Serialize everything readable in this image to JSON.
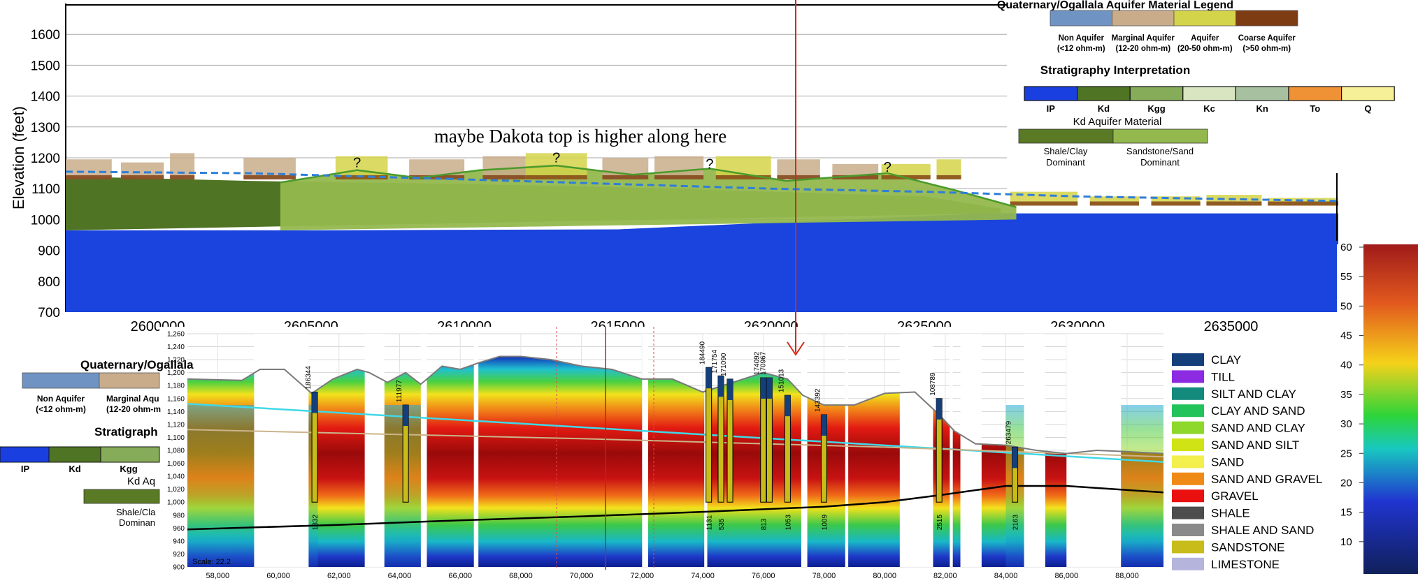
{
  "chart_data": [
    {
      "type": "area",
      "ylabel": "Elevation (feet)",
      "ylim": [
        700,
        1700
      ],
      "yticks": [
        700,
        800,
        900,
        1000,
        1100,
        1200,
        1300,
        1400,
        1500,
        1600
      ],
      "xlim": [
        2597000,
        2638500
      ],
      "xticks": [
        2600000,
        2605000,
        2610000,
        2615000,
        2620000,
        2625000,
        2630000,
        2635000
      ],
      "grid": true,
      "annotation": "maybe Dakota top is higher along here",
      "question_marks": [
        {
          "x": 2606500,
          "y": 1170,
          "text": "?"
        },
        {
          "x": 2613000,
          "y": 1185,
          "text": "?"
        },
        {
          "x": 2618000,
          "y": 1165,
          "text": "?"
        },
        {
          "x": 2623800,
          "y": 1155,
          "text": "?"
        }
      ],
      "dakota_top_dashed": {
        "x": [
          2597000,
          2603000,
          2610000,
          2615000,
          2620000,
          2625000,
          2630000,
          2638500
        ],
        "y": [
          1155,
          1150,
          1130,
          1115,
          1100,
          1090,
          1075,
          1060
        ]
      },
      "green_outline": {
        "x": [
          2604000,
          2606500,
          2608500,
          2610500,
          2613000,
          2615500,
          2618000,
          2620500,
          2623800,
          2626000,
          2628000
        ],
        "y": [
          1120,
          1160,
          1135,
          1160,
          1175,
          1145,
          1165,
          1125,
          1150,
          1095,
          1040
        ]
      },
      "bedrock_top": {
        "x": [
          2597000,
          2605000,
          2615000,
          2627000,
          2638500
        ],
        "y": [
          965,
          965,
          968,
          1020,
          1020
        ]
      },
      "legend_aquifer": {
        "title": "Quaternary/Ogallala Aquifer Material Legend",
        "items": [
          {
            "label": "Non Aquifer",
            "range": "(<12 ohm-m)",
            "color": "#6f93c3"
          },
          {
            "label": "Marginal Aquifer",
            "range": "(12-20 ohm-m)",
            "color": "#c9ad8b"
          },
          {
            "label": "Aquifer",
            "range": "(20-50 ohm-m)",
            "color": "#d4d44a"
          },
          {
            "label": "Coarse Aquifer",
            "range": "(>50 ohm-m)",
            "color": "#7e3c12"
          }
        ]
      },
      "legend_strat": {
        "title": "Stratigraphy Interpretation",
        "items": [
          {
            "label": "IP",
            "color": "#1a3fe0"
          },
          {
            "label": "Kd",
            "color": "#4f7424"
          },
          {
            "label": "Kgg",
            "color": "#86ab59"
          },
          {
            "label": "Kc",
            "color": "#d8e5c0"
          },
          {
            "label": "Kn",
            "color": "#a7c0a0"
          },
          {
            "label": "To",
            "color": "#ef9135"
          },
          {
            "label": "Q",
            "color": "#f6f098"
          }
        ]
      },
      "legend_kd": {
        "title": "Kd Aquifer Material",
        "items": [
          {
            "label": "Shale/Clay",
            "label2": "Dominant",
            "color": "#5a7a25"
          },
          {
            "label": "Sandstone/Sand",
            "label2": "Dominant",
            "color": "#93b84e"
          }
        ]
      }
    },
    {
      "type": "heatmap",
      "ylim": [
        900,
        1260
      ],
      "yticks": [
        "1,260",
        "1,240",
        "1,220",
        "1,200",
        "1,180",
        "1,160",
        "1,140",
        "1,120",
        "1,100",
        "1,080",
        "1,060",
        "1,040",
        "1,020",
        "1,000",
        "980",
        "960",
        "940",
        "920",
        "900"
      ],
      "xlim": [
        57000,
        89200
      ],
      "xticks": [
        "58,000",
        "60,000",
        "62,000",
        "64,000",
        "66,000",
        "68,000",
        "70,000",
        "72,000",
        "74,000",
        "76,000",
        "78,000",
        "80,000",
        "82,000",
        "84,000",
        "86,000",
        "88,000"
      ],
      "scale_note": "Scale: 22.2",
      "wells": [
        {
          "id": "186344",
          "x": 61200,
          "bottom": "1332",
          "top": 1170
        },
        {
          "id": "111977",
          "x": 64200,
          "bottom": "",
          "top": 1150
        },
        {
          "id": "184490",
          "x": 74200,
          "bottom": "1131",
          "top": 1208
        },
        {
          "id": "171754",
          "x": 74600,
          "bottom": "535",
          "top": 1195
        },
        {
          "id": "171090",
          "x": 74900,
          "bottom": "",
          "top": 1190
        },
        {
          "id": "174092",
          "x": 76000,
          "bottom": "813",
          "top": 1192
        },
        {
          "id": "170967",
          "x": 76200,
          "bottom": "",
          "top": 1192
        },
        {
          "id": "151013",
          "x": 76800,
          "bottom": "1053",
          "top": 1165
        },
        {
          "id": "143392",
          "x": 78000,
          "bottom": "1009",
          "top": 1135
        },
        {
          "id": "108789",
          "x": 81800,
          "bottom": "2515",
          "top": 1160
        },
        {
          "id": "263479",
          "x": 84300,
          "bottom": "2163",
          "top": 1085
        }
      ],
      "terrain": {
        "x": [
          57000,
          58800,
          59400,
          60200,
          61100,
          61800,
          62600,
          63000,
          63600,
          64200,
          64700,
          65400,
          66000,
          66600,
          67300,
          68000,
          69000,
          70000,
          71000,
          72000,
          73000,
          74000,
          75000,
          76000,
          76800,
          77300,
          78000,
          79000,
          80000,
          81000,
          81800,
          82300,
          83000,
          84000,
          85000,
          86000,
          87000,
          88000,
          89200
        ],
        "y": [
          1190,
          1188,
          1205,
          1205,
          1168,
          1190,
          1205,
          1200,
          1185,
          1200,
          1182,
          1210,
          1205,
          1215,
          1225,
          1225,
          1220,
          1210,
          1205,
          1190,
          1190,
          1170,
          1185,
          1200,
          1190,
          1165,
          1150,
          1150,
          1168,
          1170,
          1135,
          1110,
          1090,
          1088,
          1080,
          1075,
          1080,
          1078,
          1075
        ]
      },
      "cyan_line": {
        "x": [
          57000,
          89200
        ],
        "y": [
          1152,
          1062
        ]
      },
      "tan_line": {
        "x": [
          57000,
          70000,
          80000,
          89200
        ],
        "y": [
          1112,
          1098,
          1085,
          1070
        ]
      },
      "black_line": {
        "x": [
          57000,
          62000,
          66000,
          70000,
          74000,
          78000,
          80000,
          82000,
          84000,
          86000,
          89200
        ],
        "y": [
          958,
          965,
          972,
          978,
          985,
          993,
          1000,
          1012,
          1025,
          1025,
          1015
        ]
      },
      "lithology_legend": [
        {
          "label": "CLAY",
          "color": "#153f7a"
        },
        {
          "label": "TILL",
          "color": "#8c2be2"
        },
        {
          "label": "SILT AND CLAY",
          "color": "#148a7c"
        },
        {
          "label": "CLAY AND SAND",
          "color": "#22c35a"
        },
        {
          "label": "SAND AND CLAY",
          "color": "#8dd82a"
        },
        {
          "label": "SAND AND SILT",
          "color": "#cfe315"
        },
        {
          "label": "SAND",
          "color": "#f3ef4c"
        },
        {
          "label": "SAND AND GRAVEL",
          "color": "#f08a16"
        },
        {
          "label": "GRAVEL",
          "color": "#ea1010"
        },
        {
          "label": "SHALE",
          "color": "#4d4d4d"
        },
        {
          "label": "SHALE AND SAND",
          "color": "#8a8a8a"
        },
        {
          "label": "SANDSTONE",
          "color": "#c8bc1a"
        },
        {
          "label": "LIMESTONE",
          "color": "#b4b4dc"
        }
      ],
      "colorbar": {
        "ticks": [
          "60",
          "55",
          "50",
          "45",
          "40",
          "35",
          "30",
          "25",
          "20",
          "15",
          "10"
        ],
        "min": 5,
        "max": 60
      }
    }
  ],
  "overlay_legend": {
    "title": "Quaternary/Ogallala",
    "items": [
      {
        "label": "Non Aquifer",
        "range": "(<12 ohm-m)"
      },
      {
        "label": "Marginal Aqu",
        "range": "(12-20 ohm-m"
      }
    ],
    "strat_title": "Stratigraph",
    "strat_labels": [
      "IP",
      "Kd",
      "Kgg"
    ],
    "kd_title": "Kd Aq",
    "kd_labels": [
      "Shale/Cla",
      "Dominan"
    ]
  },
  "colors": {
    "marker_line": "#d42a1a",
    "water_dash": "#2f7ed8",
    "kd_dark": "#4f7424",
    "kd_light": "#93b84e",
    "basement": "#1a44dd"
  }
}
